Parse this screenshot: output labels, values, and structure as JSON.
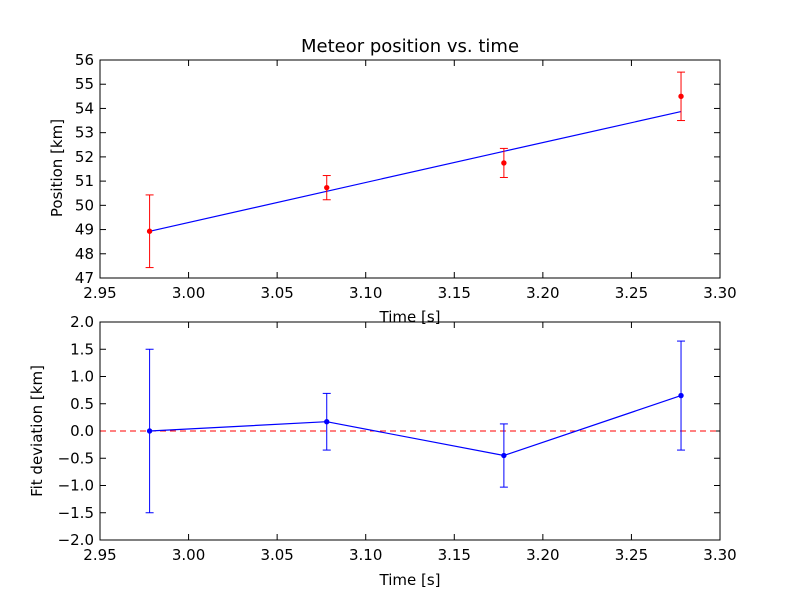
{
  "chart_data": [
    {
      "type": "line",
      "title": "Meteor position vs. time",
      "xlabel": "Time [s]",
      "ylabel": "Position [km]",
      "xlim": [
        2.95,
        3.3
      ],
      "ylim": [
        47,
        56
      ],
      "xticks": [
        "2.95",
        "3.00",
        "3.05",
        "3.10",
        "3.15",
        "3.20",
        "3.25",
        "3.30"
      ],
      "yticks": [
        "47",
        "48",
        "49",
        "50",
        "51",
        "52",
        "53",
        "54",
        "55",
        "56"
      ],
      "grid": false,
      "series": [
        {
          "kind": "fit-line",
          "color": "#0000ff",
          "x": [
            2.978,
            3.078,
            3.178,
            3.278
          ],
          "y": [
            48.93,
            50.58,
            52.23,
            53.87
          ]
        },
        {
          "kind": "errorbar-points",
          "color": "#ff0000",
          "x": [
            2.978,
            3.078,
            3.178,
            3.278
          ],
          "y": [
            48.93,
            50.73,
            51.75,
            54.5
          ],
          "yerr": [
            1.5,
            0.5,
            0.6,
            1.0
          ]
        }
      ]
    },
    {
      "type": "line",
      "title": "",
      "xlabel": "Time [s]",
      "ylabel": "Fit deviation [km]",
      "xlim": [
        2.95,
        3.3
      ],
      "ylim": [
        -2.0,
        2.0
      ],
      "xticks": [
        "2.95",
        "3.00",
        "3.05",
        "3.10",
        "3.15",
        "3.20",
        "3.25",
        "3.30"
      ],
      "yticks": [
        "−2.0",
        "−1.5",
        "−1.0",
        "−0.5",
        "0.0",
        "0.5",
        "1.0",
        "1.5",
        "2.0"
      ],
      "grid": false,
      "series": [
        {
          "kind": "zero-line",
          "color": "#ff0000",
          "dashed": true,
          "y": 0.0
        },
        {
          "kind": "errorbar-line",
          "color": "#0000ff",
          "x": [
            2.978,
            3.078,
            3.178,
            3.278
          ],
          "y": [
            0.0,
            0.17,
            -0.45,
            0.65
          ],
          "yerr": [
            1.5,
            0.52,
            0.58,
            1.0
          ]
        }
      ]
    }
  ]
}
